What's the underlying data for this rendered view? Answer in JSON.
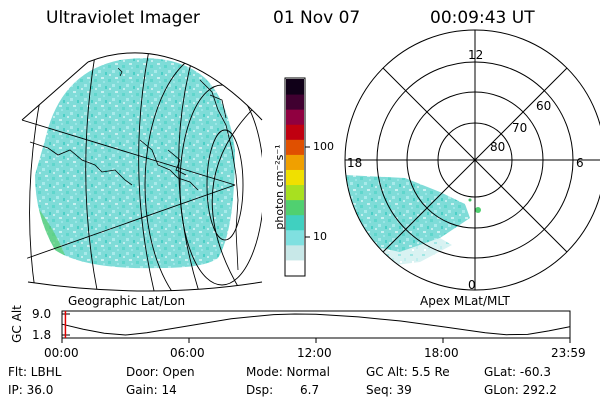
{
  "header": {
    "instrument": "Ultraviolet Imager",
    "date": "01 Nov 07",
    "time": "00:09:43 UT"
  },
  "left_panel": {
    "label": "Geographic Lat/Lon"
  },
  "right_panel": {
    "label": "Apex MLat/MLT",
    "mlt_labels": {
      "top": "12",
      "left": "18",
      "right": "6",
      "bottom": "0"
    },
    "mlat_labels": [
      "60",
      "70",
      "80"
    ]
  },
  "colorbar": {
    "unit": "photon cm⁻²s⁻¹",
    "ticks": [
      "100",
      "10"
    ],
    "scale": "log",
    "colors": [
      "#ffffff",
      "#c8e8e8",
      "#80e0e0",
      "#40d0c0",
      "#50d070",
      "#a8e020",
      "#f0e000",
      "#f0a000",
      "#e05000",
      "#c00010",
      "#900040",
      "#400030",
      "#100018"
    ]
  },
  "altitude_plot": {
    "ylabel": "GC Alt",
    "yticks": [
      "9.0",
      "1.8"
    ],
    "xticks": [
      "00:00",
      "06:00",
      "12:00",
      "18:00",
      "23:59"
    ],
    "chart_data": {
      "type": "line",
      "x_unit": "UT hour",
      "y_unit": "Re",
      "x": [
        0,
        1,
        2,
        3,
        4,
        6,
        8,
        10,
        11,
        12,
        14,
        16,
        18,
        20,
        21,
        22,
        23,
        23.98
      ],
      "y": [
        5.5,
        3.8,
        2.4,
        1.8,
        2.6,
        5.0,
        7.4,
        8.8,
        9.0,
        8.9,
        8.0,
        6.6,
        4.6,
        2.6,
        1.9,
        2.0,
        3.2,
        4.6
      ],
      "ylim": [
        1.8,
        9.0
      ],
      "marker_time": "00:09:43"
    }
  },
  "footer": {
    "flt": "Flt: LBHL",
    "ip": "IP: 36.0",
    "door": "Door: Open",
    "gain": "Gain: 14",
    "mode": "Mode: Normal",
    "dsp_label": "Dsp:",
    "dsp_value": "6.7",
    "gcalt": "GC Alt: 5.5 Re",
    "seq": "Seq: 39",
    "glat": "GLat: -60.3",
    "glon": "GLon: 292.2"
  }
}
